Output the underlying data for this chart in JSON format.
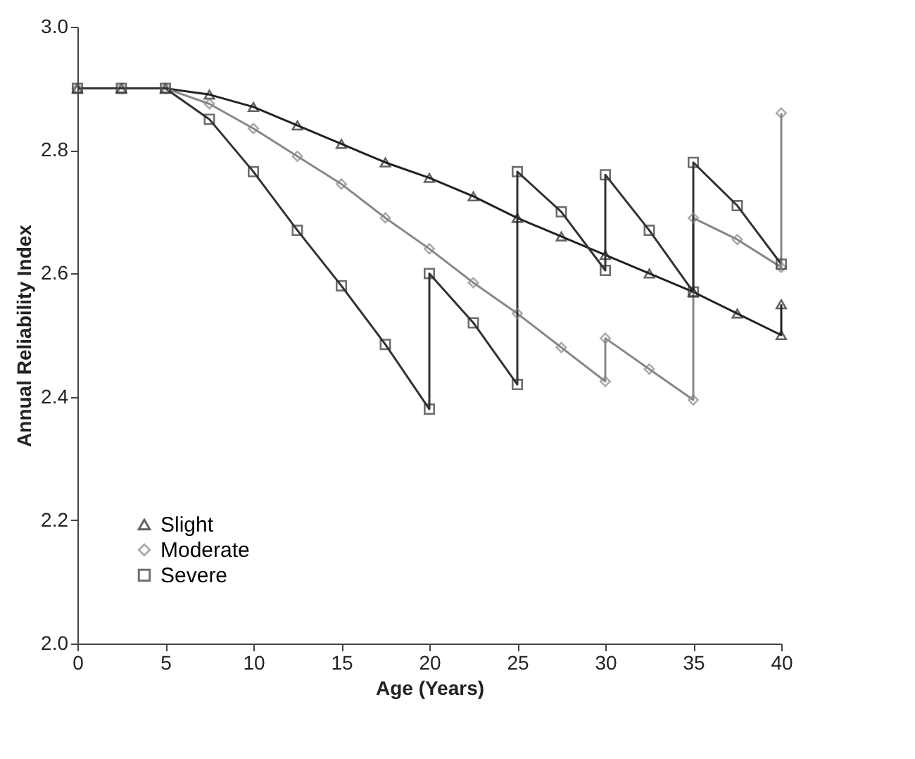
{
  "chart_data": {
    "type": "line",
    "xlabel": "Age (Years)",
    "ylabel": "Annual Reliability Index",
    "xlim": [
      0,
      40
    ],
    "xticks": [
      0,
      5,
      10,
      15,
      20,
      25,
      30,
      35,
      40
    ],
    "ylim": [
      2.0,
      3.0
    ],
    "yticks": [
      {
        "value": 2.0,
        "label": "2.0"
      },
      {
        "value": 2.2,
        "label": "2.2"
      },
      {
        "value": 2.4,
        "label": "2.4"
      },
      {
        "value": 2.6,
        "label": "2.6"
      },
      {
        "value": 2.8,
        "label": "2.8"
      },
      {
        "value": 3.0,
        "label": "3.0"
      }
    ],
    "grid": false,
    "legend": "bottom left",
    "line_style": "solid",
    "series": [
      {
        "name": "Slight",
        "color": "#222222",
        "marker": "triangle",
        "x": [
          0,
          2.5,
          5,
          7.5,
          10,
          12.5,
          15,
          17.5,
          20,
          22.5,
          25,
          27.5,
          30,
          32.5,
          35,
          37.5,
          40,
          40
        ],
        "values": [
          2.9,
          2.9,
          2.9,
          2.89,
          2.87,
          2.84,
          2.81,
          2.78,
          2.755,
          2.725,
          2.69,
          2.66,
          2.63,
          2.6,
          2.57,
          2.535,
          2.5,
          2.55
        ]
      },
      {
        "name": "Moderate",
        "color": "#888888",
        "marker": "diamond",
        "x": [
          0,
          2.5,
          5,
          7.5,
          10,
          12.5,
          15,
          17.5,
          20,
          22.5,
          25,
          27.5,
          30,
          30,
          32.5,
          35,
          35,
          37.5,
          40,
          40
        ],
        "values": [
          2.9,
          2.9,
          2.9,
          2.875,
          2.835,
          2.79,
          2.745,
          2.69,
          2.64,
          2.585,
          2.535,
          2.48,
          2.425,
          2.495,
          2.445,
          2.395,
          2.69,
          2.655,
          2.61,
          2.86
        ]
      },
      {
        "name": "Severe",
        "color": "#333333",
        "marker": "square",
        "x": [
          0,
          2.5,
          5,
          7.5,
          10,
          12.5,
          15,
          17.5,
          20,
          20,
          22.5,
          25,
          25,
          27.5,
          30,
          30,
          32.5,
          35,
          35,
          37.5,
          40
        ],
        "values": [
          2.9,
          2.9,
          2.9,
          2.85,
          2.765,
          2.67,
          2.58,
          2.485,
          2.38,
          2.6,
          2.52,
          2.42,
          2.765,
          2.7,
          2.605,
          2.76,
          2.67,
          2.57,
          2.78,
          2.71,
          2.615
        ]
      }
    ]
  }
}
